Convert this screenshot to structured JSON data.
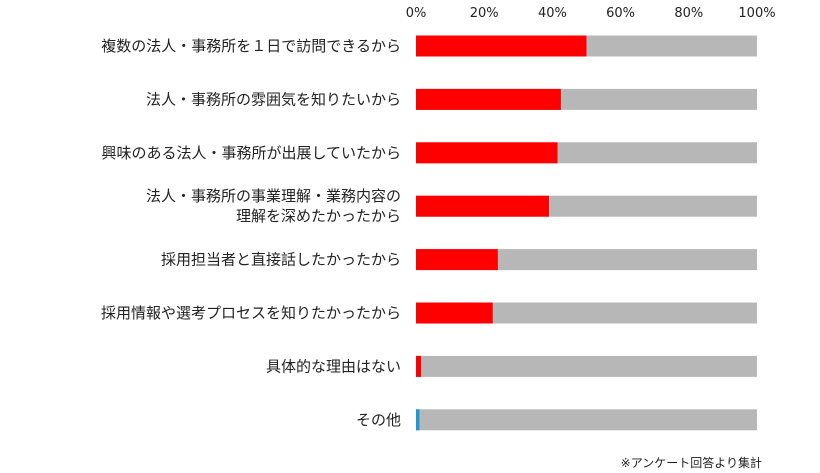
{
  "chart_data": {
    "type": "bar",
    "orientation": "horizontal",
    "stacked": true,
    "categories": [
      [
        "複数の法人・事務所を１日で訪問できるから"
      ],
      [
        "法人・事務所の雰囲気を知りたいから"
      ],
      [
        "興味のある法人・事務所が出展していたから"
      ],
      [
        "法人・事務所の事業理解・業務内容の",
        "理解を深めたかったから"
      ],
      [
        "採用担当者と直接話したかったから"
      ],
      [
        "採用情報や選考プロセスを知りたかったから"
      ],
      [
        "具体的な理由はない"
      ],
      [
        "その他"
      ]
    ],
    "values": [
      50,
      42.5,
      41.5,
      39,
      24,
      22.5,
      1.5,
      1
    ],
    "bar_colors": [
      "#ff0000",
      "#ff0000",
      "#ff0000",
      "#ff0000",
      "#ff0000",
      "#ff0000",
      "#ff0000",
      "#1a9ad6"
    ],
    "remainder_color": "#b7b7b7",
    "xlim": [
      0,
      100
    ],
    "xticks": [
      "0%",
      "20%",
      "40%",
      "60%",
      "80%",
      "100%"
    ],
    "tick_values": [
      0,
      20,
      40,
      60,
      80,
      100
    ],
    "grid": false,
    "note": "※アンケート回答より集計"
  }
}
